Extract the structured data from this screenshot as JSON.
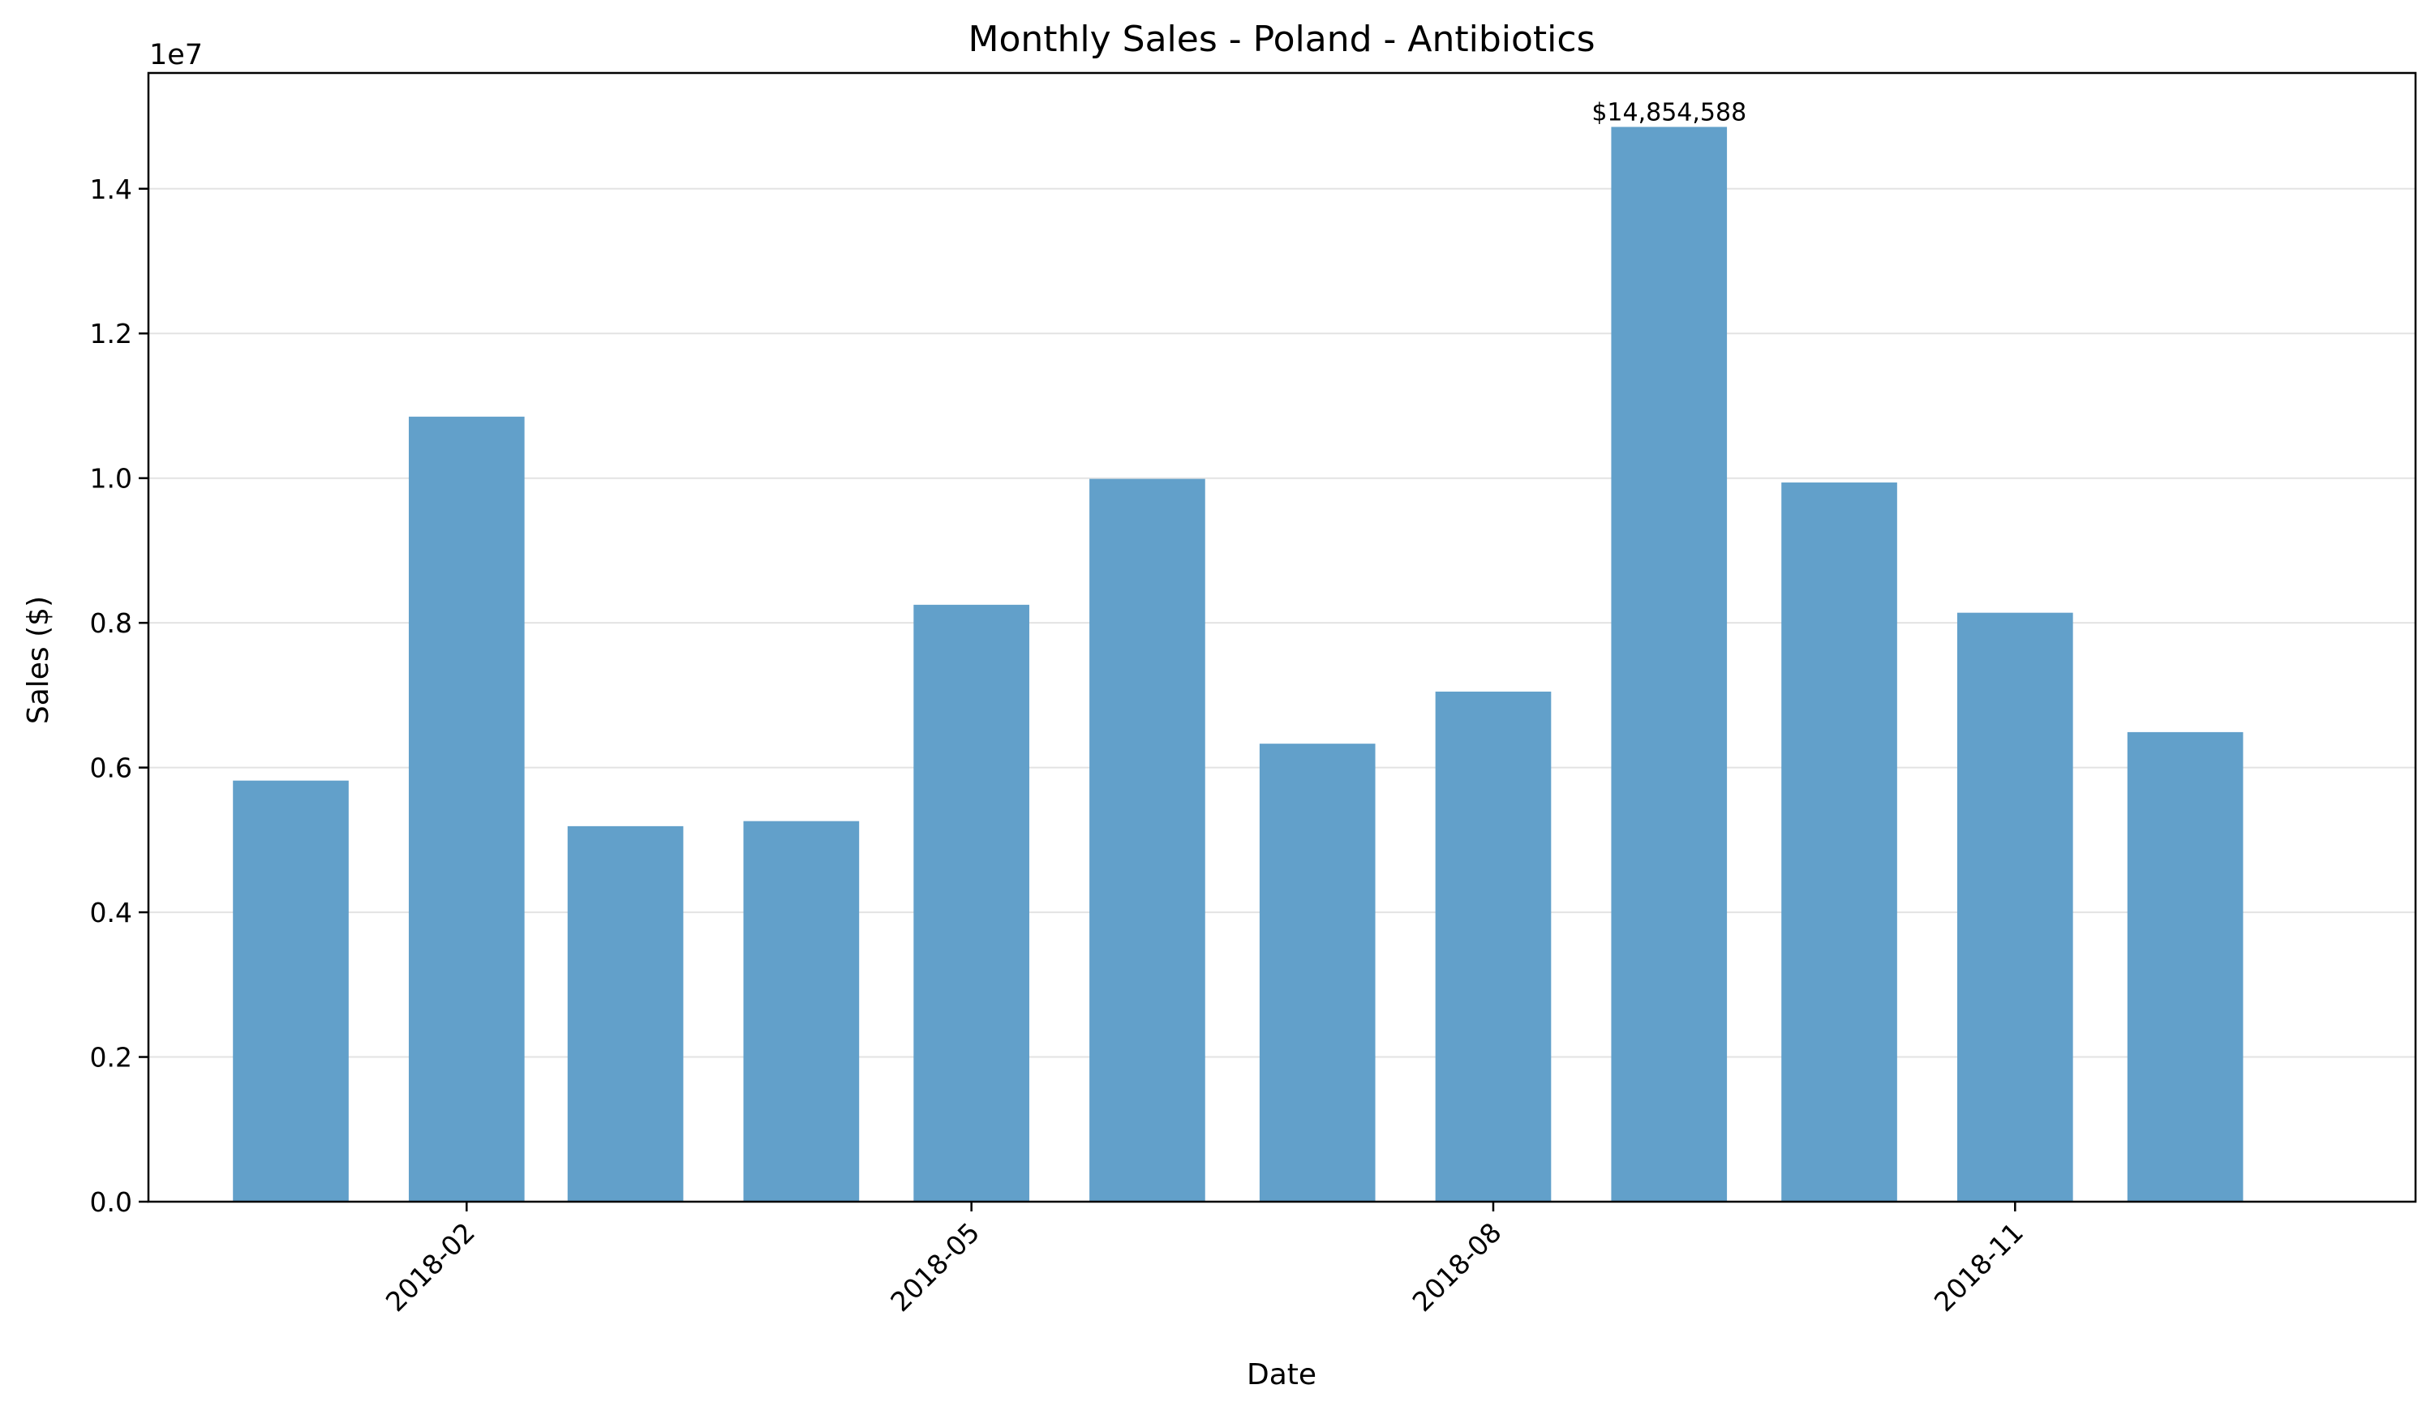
{
  "chart_data": {
    "type": "bar",
    "title": "Monthly Sales - Poland - Antibiotics",
    "xlabel": "Date",
    "ylabel": "Sales ($)",
    "y_offset_label": "1e7",
    "ylim": [
      0,
      15600000
    ],
    "grid": "y",
    "bar_color": "#62a0ca",
    "categories": [
      "2018-01",
      "2018-02",
      "2018-03",
      "2018-04",
      "2018-05",
      "2018-06",
      "2018-07",
      "2018-08",
      "2018-09",
      "2018-10",
      "2018-11",
      "2018-12"
    ],
    "values": [
      5820000,
      10850000,
      5190000,
      5260000,
      8250000,
      9990000,
      6330000,
      7050000,
      14854588,
      9940000,
      8140000,
      6490000
    ],
    "y_ticks": [
      0,
      2000000,
      4000000,
      6000000,
      8000000,
      10000000,
      12000000,
      14000000
    ],
    "y_tick_labels": [
      "0.0",
      "0.2",
      "0.4",
      "0.6",
      "0.8",
      "1.0",
      "1.2",
      "1.4"
    ],
    "x_tick_labels": [
      "2018-02",
      "2018-05",
      "2018-08",
      "2018-11"
    ],
    "annotations": [
      {
        "category": "2018-09",
        "text": "$14,854,588"
      }
    ]
  }
}
